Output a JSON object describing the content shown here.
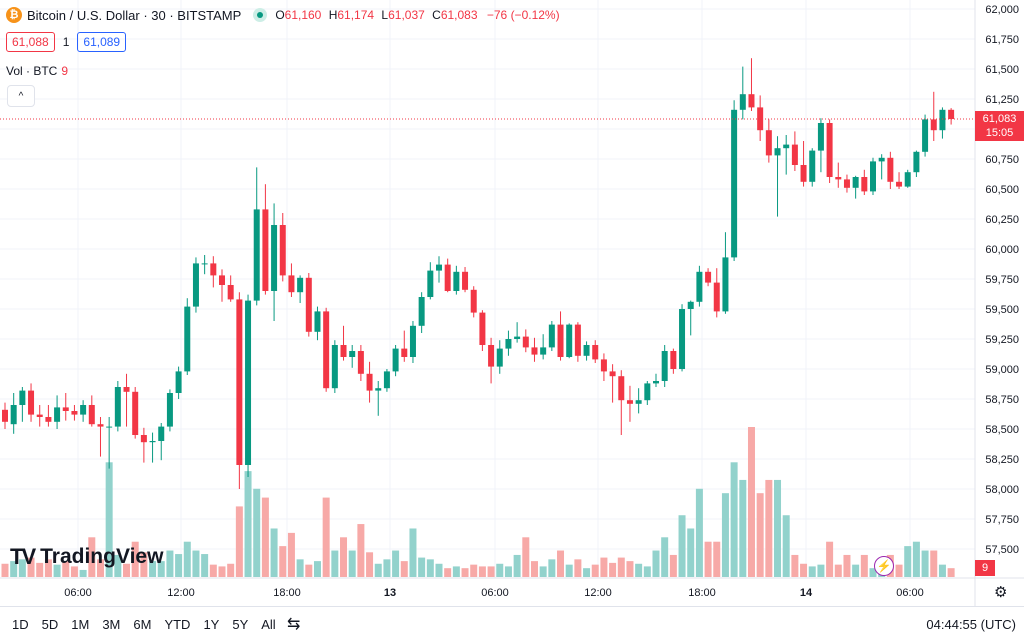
{
  "header": {
    "symbol": "Bitcoin / U.S. Dollar · 30 · BITSTAMP",
    "coin_glyph": "₿",
    "open_key": "O",
    "open": "61,160",
    "high_key": "H",
    "high": "61,174",
    "low_key": "L",
    "low": "61,037",
    "close_key": "C",
    "close": "61,083",
    "change": "−76 (−0.12%)"
  },
  "quote": {
    "bid": "61,088",
    "spread": "1",
    "ask": "61,089"
  },
  "volume": {
    "label": "Vol · BTC",
    "value": "9"
  },
  "collapse_glyph": "^",
  "logo": {
    "mark": "TV",
    "name": "TradingView"
  },
  "price_axis": {
    "labels": [
      "62,000",
      "61,750",
      "61,500",
      "61,250",
      "61,000",
      "60,750",
      "60,500",
      "60,250",
      "60,000",
      "59,750",
      "59,500",
      "59,250",
      "59,000",
      "58,750",
      "58,500",
      "58,250",
      "58,000",
      "57,750",
      "57,500"
    ],
    "last_price": "61,083",
    "countdown": "15:05",
    "volume_tag": "9"
  },
  "time_axis": [
    "06:00",
    "12:00",
    "18:00",
    "13",
    "06:00",
    "12:00",
    "18:00",
    "14",
    "06:00"
  ],
  "toolbar": {
    "ranges": [
      "1D",
      "5D",
      "1M",
      "3M",
      "6M",
      "YTD",
      "1Y",
      "5Y",
      "All"
    ],
    "compare_icon": "⇆",
    "clock": "04:44:55 (UTC)",
    "settings_icon": "⚙"
  },
  "colors": {
    "up": "#089981",
    "down": "#f23645",
    "up_vol": "#92d2cc",
    "down_vol": "#f7a9a7",
    "grid": "#f0f3fa"
  },
  "chart_data": {
    "type": "candlestick",
    "price_range": [
      57400,
      62000
    ],
    "candles": [
      {
        "o": 58660,
        "h": 58720,
        "l": 58500,
        "c": 58560,
        "v": 0.15
      },
      {
        "o": 58540,
        "h": 58800,
        "l": 58460,
        "c": 58700,
        "v": 0.18
      },
      {
        "o": 58700,
        "h": 58850,
        "l": 58560,
        "c": 58820,
        "v": 0.2
      },
      {
        "o": 58820,
        "h": 58880,
        "l": 58560,
        "c": 58620,
        "v": 0.22
      },
      {
        "o": 58620,
        "h": 58700,
        "l": 58520,
        "c": 58600,
        "v": 0.16
      },
      {
        "o": 58600,
        "h": 58700,
        "l": 58520,
        "c": 58560,
        "v": 0.2
      },
      {
        "o": 58560,
        "h": 58780,
        "l": 58500,
        "c": 58680,
        "v": 0.14
      },
      {
        "o": 58680,
        "h": 58800,
        "l": 58570,
        "c": 58650,
        "v": 0.18
      },
      {
        "o": 58650,
        "h": 58700,
        "l": 58570,
        "c": 58620,
        "v": 0.12
      },
      {
        "o": 58620,
        "h": 58740,
        "l": 58560,
        "c": 58700,
        "v": 0.08
      },
      {
        "o": 58700,
        "h": 58780,
        "l": 58520,
        "c": 58540,
        "v": 0.45
      },
      {
        "o": 58540,
        "h": 58600,
        "l": 58270,
        "c": 58520,
        "v": 0.2
      },
      {
        "o": 58520,
        "h": 58600,
        "l": 58170,
        "c": 58520,
        "v": 1.3
      },
      {
        "o": 58520,
        "h": 58900,
        "l": 58480,
        "c": 58850,
        "v": 0.25
      },
      {
        "o": 58850,
        "h": 58960,
        "l": 58520,
        "c": 58810,
        "v": 0.15
      },
      {
        "o": 58810,
        "h": 58850,
        "l": 58420,
        "c": 58450,
        "v": 0.4
      },
      {
        "o": 58450,
        "h": 58510,
        "l": 58220,
        "c": 58390,
        "v": 0.28
      },
      {
        "o": 58390,
        "h": 58470,
        "l": 58220,
        "c": 58400,
        "v": 0.18
      },
      {
        "o": 58400,
        "h": 58550,
        "l": 58240,
        "c": 58520,
        "v": 0.18
      },
      {
        "o": 58520,
        "h": 58830,
        "l": 58480,
        "c": 58800,
        "v": 0.3
      },
      {
        "o": 58800,
        "h": 59020,
        "l": 58750,
        "c": 58980,
        "v": 0.26
      },
      {
        "o": 58980,
        "h": 59590,
        "l": 58950,
        "c": 59520,
        "v": 0.4
      },
      {
        "o": 59520,
        "h": 59930,
        "l": 59470,
        "c": 59880,
        "v": 0.3
      },
      {
        "o": 59880,
        "h": 59950,
        "l": 59790,
        "c": 59880,
        "v": 0.26
      },
      {
        "o": 59880,
        "h": 59940,
        "l": 59680,
        "c": 59780,
        "v": 0.14
      },
      {
        "o": 59780,
        "h": 59830,
        "l": 59560,
        "c": 59700,
        "v": 0.12
      },
      {
        "o": 59700,
        "h": 59780,
        "l": 59560,
        "c": 59580,
        "v": 0.15
      },
      {
        "o": 59580,
        "h": 59640,
        "l": 58000,
        "c": 58200,
        "v": 0.8
      },
      {
        "o": 58200,
        "h": 59620,
        "l": 58100,
        "c": 59570,
        "v": 1.2
      },
      {
        "o": 59570,
        "h": 60680,
        "l": 59530,
        "c": 60330,
        "v": 1.0
      },
      {
        "o": 60330,
        "h": 60540,
        "l": 59620,
        "c": 59650,
        "v": 0.9
      },
      {
        "o": 59650,
        "h": 60380,
        "l": 59400,
        "c": 60200,
        "v": 0.55
      },
      {
        "o": 60200,
        "h": 60300,
        "l": 59730,
        "c": 59780,
        "v": 0.35
      },
      {
        "o": 59780,
        "h": 59880,
        "l": 59600,
        "c": 59640,
        "v": 0.5
      },
      {
        "o": 59640,
        "h": 59780,
        "l": 59550,
        "c": 59760,
        "v": 0.2
      },
      {
        "o": 59760,
        "h": 59800,
        "l": 59270,
        "c": 59310,
        "v": 0.14
      },
      {
        "o": 59310,
        "h": 59520,
        "l": 59240,
        "c": 59480,
        "v": 0.18
      },
      {
        "o": 59480,
        "h": 59510,
        "l": 58810,
        "c": 58840,
        "v": 0.9
      },
      {
        "o": 58840,
        "h": 59240,
        "l": 58800,
        "c": 59200,
        "v": 0.3
      },
      {
        "o": 59200,
        "h": 59360,
        "l": 59070,
        "c": 59100,
        "v": 0.45
      },
      {
        "o": 59100,
        "h": 59200,
        "l": 59010,
        "c": 59150,
        "v": 0.3
      },
      {
        "o": 59150,
        "h": 59200,
        "l": 58900,
        "c": 58960,
        "v": 0.6
      },
      {
        "o": 58960,
        "h": 59060,
        "l": 58720,
        "c": 58820,
        "v": 0.28
      },
      {
        "o": 58820,
        "h": 58900,
        "l": 58610,
        "c": 58840,
        "v": 0.15
      },
      {
        "o": 58840,
        "h": 59000,
        "l": 58810,
        "c": 58980,
        "v": 0.2
      },
      {
        "o": 58980,
        "h": 59200,
        "l": 58940,
        "c": 59170,
        "v": 0.3
      },
      {
        "o": 59170,
        "h": 59320,
        "l": 59060,
        "c": 59100,
        "v": 0.18
      },
      {
        "o": 59100,
        "h": 59400,
        "l": 59050,
        "c": 59360,
        "v": 0.55
      },
      {
        "o": 59360,
        "h": 59640,
        "l": 59300,
        "c": 59600,
        "v": 0.22
      },
      {
        "o": 59600,
        "h": 59890,
        "l": 59580,
        "c": 59820,
        "v": 0.2
      },
      {
        "o": 59820,
        "h": 59940,
        "l": 59720,
        "c": 59870,
        "v": 0.15
      },
      {
        "o": 59870,
        "h": 59920,
        "l": 59640,
        "c": 59650,
        "v": 0.1
      },
      {
        "o": 59650,
        "h": 59860,
        "l": 59620,
        "c": 59810,
        "v": 0.12
      },
      {
        "o": 59810,
        "h": 59850,
        "l": 59640,
        "c": 59660,
        "v": 0.1
      },
      {
        "o": 59660,
        "h": 59690,
        "l": 59430,
        "c": 59470,
        "v": 0.14
      },
      {
        "o": 59470,
        "h": 59490,
        "l": 59150,
        "c": 59200,
        "v": 0.12
      },
      {
        "o": 59200,
        "h": 59260,
        "l": 58880,
        "c": 59020,
        "v": 0.12
      },
      {
        "o": 59020,
        "h": 59240,
        "l": 58960,
        "c": 59170,
        "v": 0.15
      },
      {
        "o": 59170,
        "h": 59320,
        "l": 59110,
        "c": 59250,
        "v": 0.12
      },
      {
        "o": 59250,
        "h": 59390,
        "l": 59220,
        "c": 59270,
        "v": 0.25
      },
      {
        "o": 59270,
        "h": 59330,
        "l": 59140,
        "c": 59180,
        "v": 0.45
      },
      {
        "o": 59180,
        "h": 59260,
        "l": 59060,
        "c": 59120,
        "v": 0.18
      },
      {
        "o": 59120,
        "h": 59290,
        "l": 59080,
        "c": 59180,
        "v": 0.12
      },
      {
        "o": 59180,
        "h": 59400,
        "l": 59150,
        "c": 59370,
        "v": 0.2
      },
      {
        "o": 59370,
        "h": 59480,
        "l": 59070,
        "c": 59100,
        "v": 0.3
      },
      {
        "o": 59100,
        "h": 59380,
        "l": 59090,
        "c": 59370,
        "v": 0.14
      },
      {
        "o": 59370,
        "h": 59390,
        "l": 59060,
        "c": 59110,
        "v": 0.2
      },
      {
        "o": 59110,
        "h": 59230,
        "l": 59070,
        "c": 59200,
        "v": 0.1
      },
      {
        "o": 59200,
        "h": 59240,
        "l": 59050,
        "c": 59080,
        "v": 0.14
      },
      {
        "o": 59080,
        "h": 59130,
        "l": 58900,
        "c": 58980,
        "v": 0.22
      },
      {
        "o": 58980,
        "h": 59040,
        "l": 58720,
        "c": 58940,
        "v": 0.16
      },
      {
        "o": 58940,
        "h": 58990,
        "l": 58450,
        "c": 58740,
        "v": 0.22
      },
      {
        "o": 58740,
        "h": 58860,
        "l": 58560,
        "c": 58710,
        "v": 0.18
      },
      {
        "o": 58710,
        "h": 58840,
        "l": 58630,
        "c": 58740,
        "v": 0.15
      },
      {
        "o": 58740,
        "h": 58900,
        "l": 58700,
        "c": 58880,
        "v": 0.12
      },
      {
        "o": 58880,
        "h": 58960,
        "l": 58850,
        "c": 58900,
        "v": 0.3
      },
      {
        "o": 58900,
        "h": 59200,
        "l": 58850,
        "c": 59150,
        "v": 0.45
      },
      {
        "o": 59150,
        "h": 59170,
        "l": 58960,
        "c": 59000,
        "v": 0.25
      },
      {
        "o": 59000,
        "h": 59540,
        "l": 58980,
        "c": 59500,
        "v": 0.7
      },
      {
        "o": 59500,
        "h": 59570,
        "l": 59280,
        "c": 59560,
        "v": 0.55
      },
      {
        "o": 59560,
        "h": 59860,
        "l": 59520,
        "c": 59810,
        "v": 1.0
      },
      {
        "o": 59810,
        "h": 59840,
        "l": 59690,
        "c": 59720,
        "v": 0.4
      },
      {
        "o": 59720,
        "h": 59840,
        "l": 59430,
        "c": 59480,
        "v": 0.4
      },
      {
        "o": 59480,
        "h": 60140,
        "l": 59460,
        "c": 59930,
        "v": 0.95
      },
      {
        "o": 59930,
        "h": 61240,
        "l": 59900,
        "c": 61160,
        "v": 1.3
      },
      {
        "o": 61160,
        "h": 61520,
        "l": 61080,
        "c": 61290,
        "v": 1.1
      },
      {
        "o": 61290,
        "h": 61590,
        "l": 61150,
        "c": 61180,
        "v": 1.7
      },
      {
        "o": 61180,
        "h": 61280,
        "l": 60900,
        "c": 60990,
        "v": 0.95
      },
      {
        "o": 60990,
        "h": 61080,
        "l": 60720,
        "c": 60780,
        "v": 1.1
      },
      {
        "o": 60780,
        "h": 60940,
        "l": 60270,
        "c": 60840,
        "v": 1.1
      },
      {
        "o": 60840,
        "h": 60950,
        "l": 60620,
        "c": 60870,
        "v": 0.7
      },
      {
        "o": 60870,
        "h": 60980,
        "l": 60650,
        "c": 60700,
        "v": 0.25
      },
      {
        "o": 60700,
        "h": 60900,
        "l": 60520,
        "c": 60560,
        "v": 0.15
      },
      {
        "o": 60560,
        "h": 60840,
        "l": 60520,
        "c": 60820,
        "v": 0.12
      },
      {
        "o": 60820,
        "h": 61090,
        "l": 60640,
        "c": 61050,
        "v": 0.14
      },
      {
        "o": 61050,
        "h": 61080,
        "l": 60550,
        "c": 60600,
        "v": 0.4
      },
      {
        "o": 60600,
        "h": 60720,
        "l": 60510,
        "c": 60580,
        "v": 0.14
      },
      {
        "o": 60580,
        "h": 60620,
        "l": 60470,
        "c": 60510,
        "v": 0.25
      },
      {
        "o": 60510,
        "h": 60610,
        "l": 60420,
        "c": 60600,
        "v": 0.14
      },
      {
        "o": 60600,
        "h": 60660,
        "l": 60450,
        "c": 60480,
        "v": 0.25
      },
      {
        "o": 60480,
        "h": 60760,
        "l": 60450,
        "c": 60730,
        "v": 0.1
      },
      {
        "o": 60730,
        "h": 60790,
        "l": 60580,
        "c": 60760,
        "v": 0.2
      },
      {
        "o": 60760,
        "h": 60810,
        "l": 60500,
        "c": 60560,
        "v": 0.25
      },
      {
        "o": 60560,
        "h": 60640,
        "l": 60500,
        "c": 60520,
        "v": 0.14
      },
      {
        "o": 60520,
        "h": 60660,
        "l": 60510,
        "c": 60640,
        "v": 0.35
      },
      {
        "o": 60640,
        "h": 60820,
        "l": 60600,
        "c": 60810,
        "v": 0.4
      },
      {
        "o": 60810,
        "h": 61120,
        "l": 60770,
        "c": 61080,
        "v": 0.3
      },
      {
        "o": 61080,
        "h": 61310,
        "l": 60900,
        "c": 60990,
        "v": 0.3
      },
      {
        "o": 60990,
        "h": 61180,
        "l": 60920,
        "c": 61160,
        "v": 0.14
      },
      {
        "o": 61160,
        "h": 61174,
        "l": 61037,
        "c": 61083,
        "v": 0.1
      }
    ]
  }
}
